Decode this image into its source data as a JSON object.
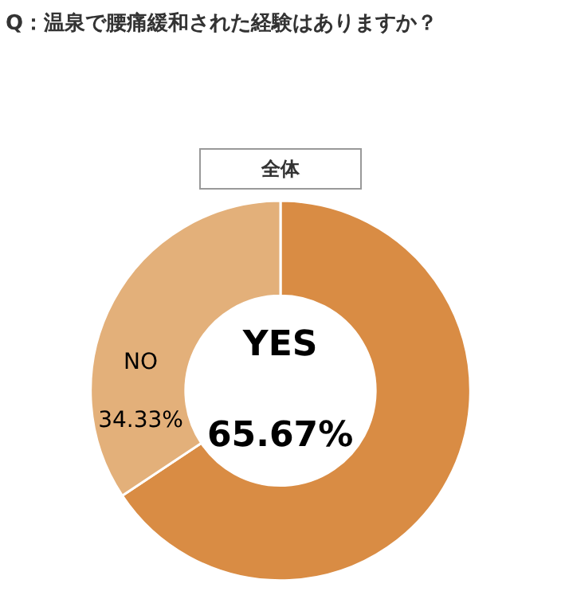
{
  "chart_data": {
    "type": "donut",
    "title": "Q：温泉で腰痛緩和された経験はありますか？",
    "subtitle": "全体",
    "categories": [
      "YES",
      "NO"
    ],
    "values": [
      65.67,
      34.33
    ],
    "colors": [
      "#d98c44",
      "#e3b07a"
    ],
    "value_labels": [
      "65.67%",
      "34.33%"
    ],
    "legend": false
  }
}
